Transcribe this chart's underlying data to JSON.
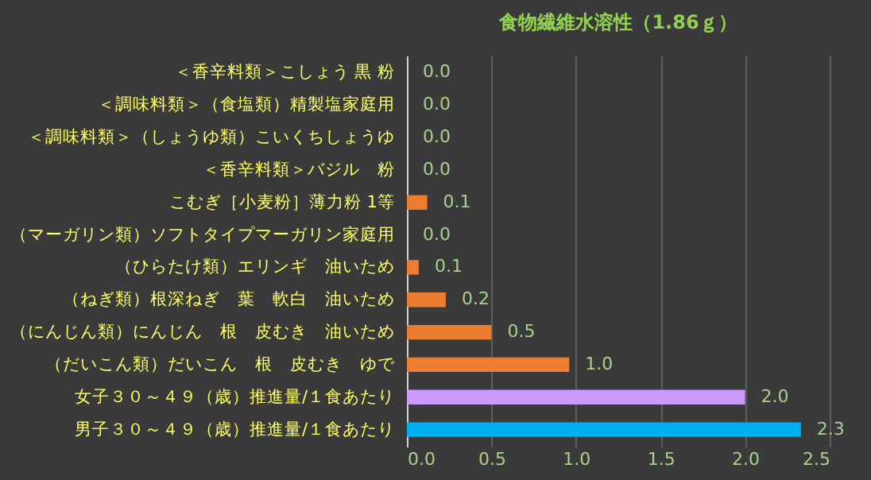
{
  "chart_data": {
    "type": "bar",
    "orientation": "horizontal",
    "title": "食物繊維水溶性（1.86ｇ）",
    "categories": [
      "＜香辛料類＞こしょう 黒 粉",
      "＜調味料類＞（食塩類）精製塩家庭用",
      "＜調味料類＞（しょうゆ類）こいくちしょうゆ",
      "＜香辛料類＞バジル　粉",
      "こむぎ［小麦粉］薄力粉 1等",
      "（マーガリン類）ソフトタイプマーガリン家庭用",
      "（ひらたけ類）エリンギ　油いため",
      "（ねぎ類）根深ねぎ　葉　軟白　油いため",
      "（にんじん類）にんじん　根　皮むき　油いため",
      "（だいこん類）だいこん　根　皮むき　ゆで",
      "女子３０～４９（歳）推進量/１食あたり",
      "男子３０～４９（歳）推進量/１食あたり"
    ],
    "values": [
      0,
      0,
      0,
      0,
      0.12,
      0,
      0.07,
      0.23,
      0.5,
      0.96,
      2.0,
      2.33
    ],
    "value_labels": [
      "0.0",
      "0.0",
      "0.0",
      "0.0",
      "0.1",
      "0.0",
      "0.1",
      "0.2",
      "0.5",
      "1.0",
      "2.0",
      "2.3"
    ],
    "colors": [
      "#ed7d31",
      "#ed7d31",
      "#ed7d31",
      "#ed7d31",
      "#ed7d31",
      "#ed7d31",
      "#ed7d31",
      "#ed7d31",
      "#ed7d31",
      "#ed7d31",
      "#cc99ff",
      "#00b0f0"
    ],
    "xlim": [
      0,
      2.5
    ],
    "xticks": [
      {
        "value": 0,
        "label": "0.0"
      },
      0.5,
      {
        "value": 1,
        "label": "1.0"
      },
      1.5,
      {
        "value": 2,
        "label": "2.0"
      },
      2.5
    ],
    "grid": "x"
  }
}
